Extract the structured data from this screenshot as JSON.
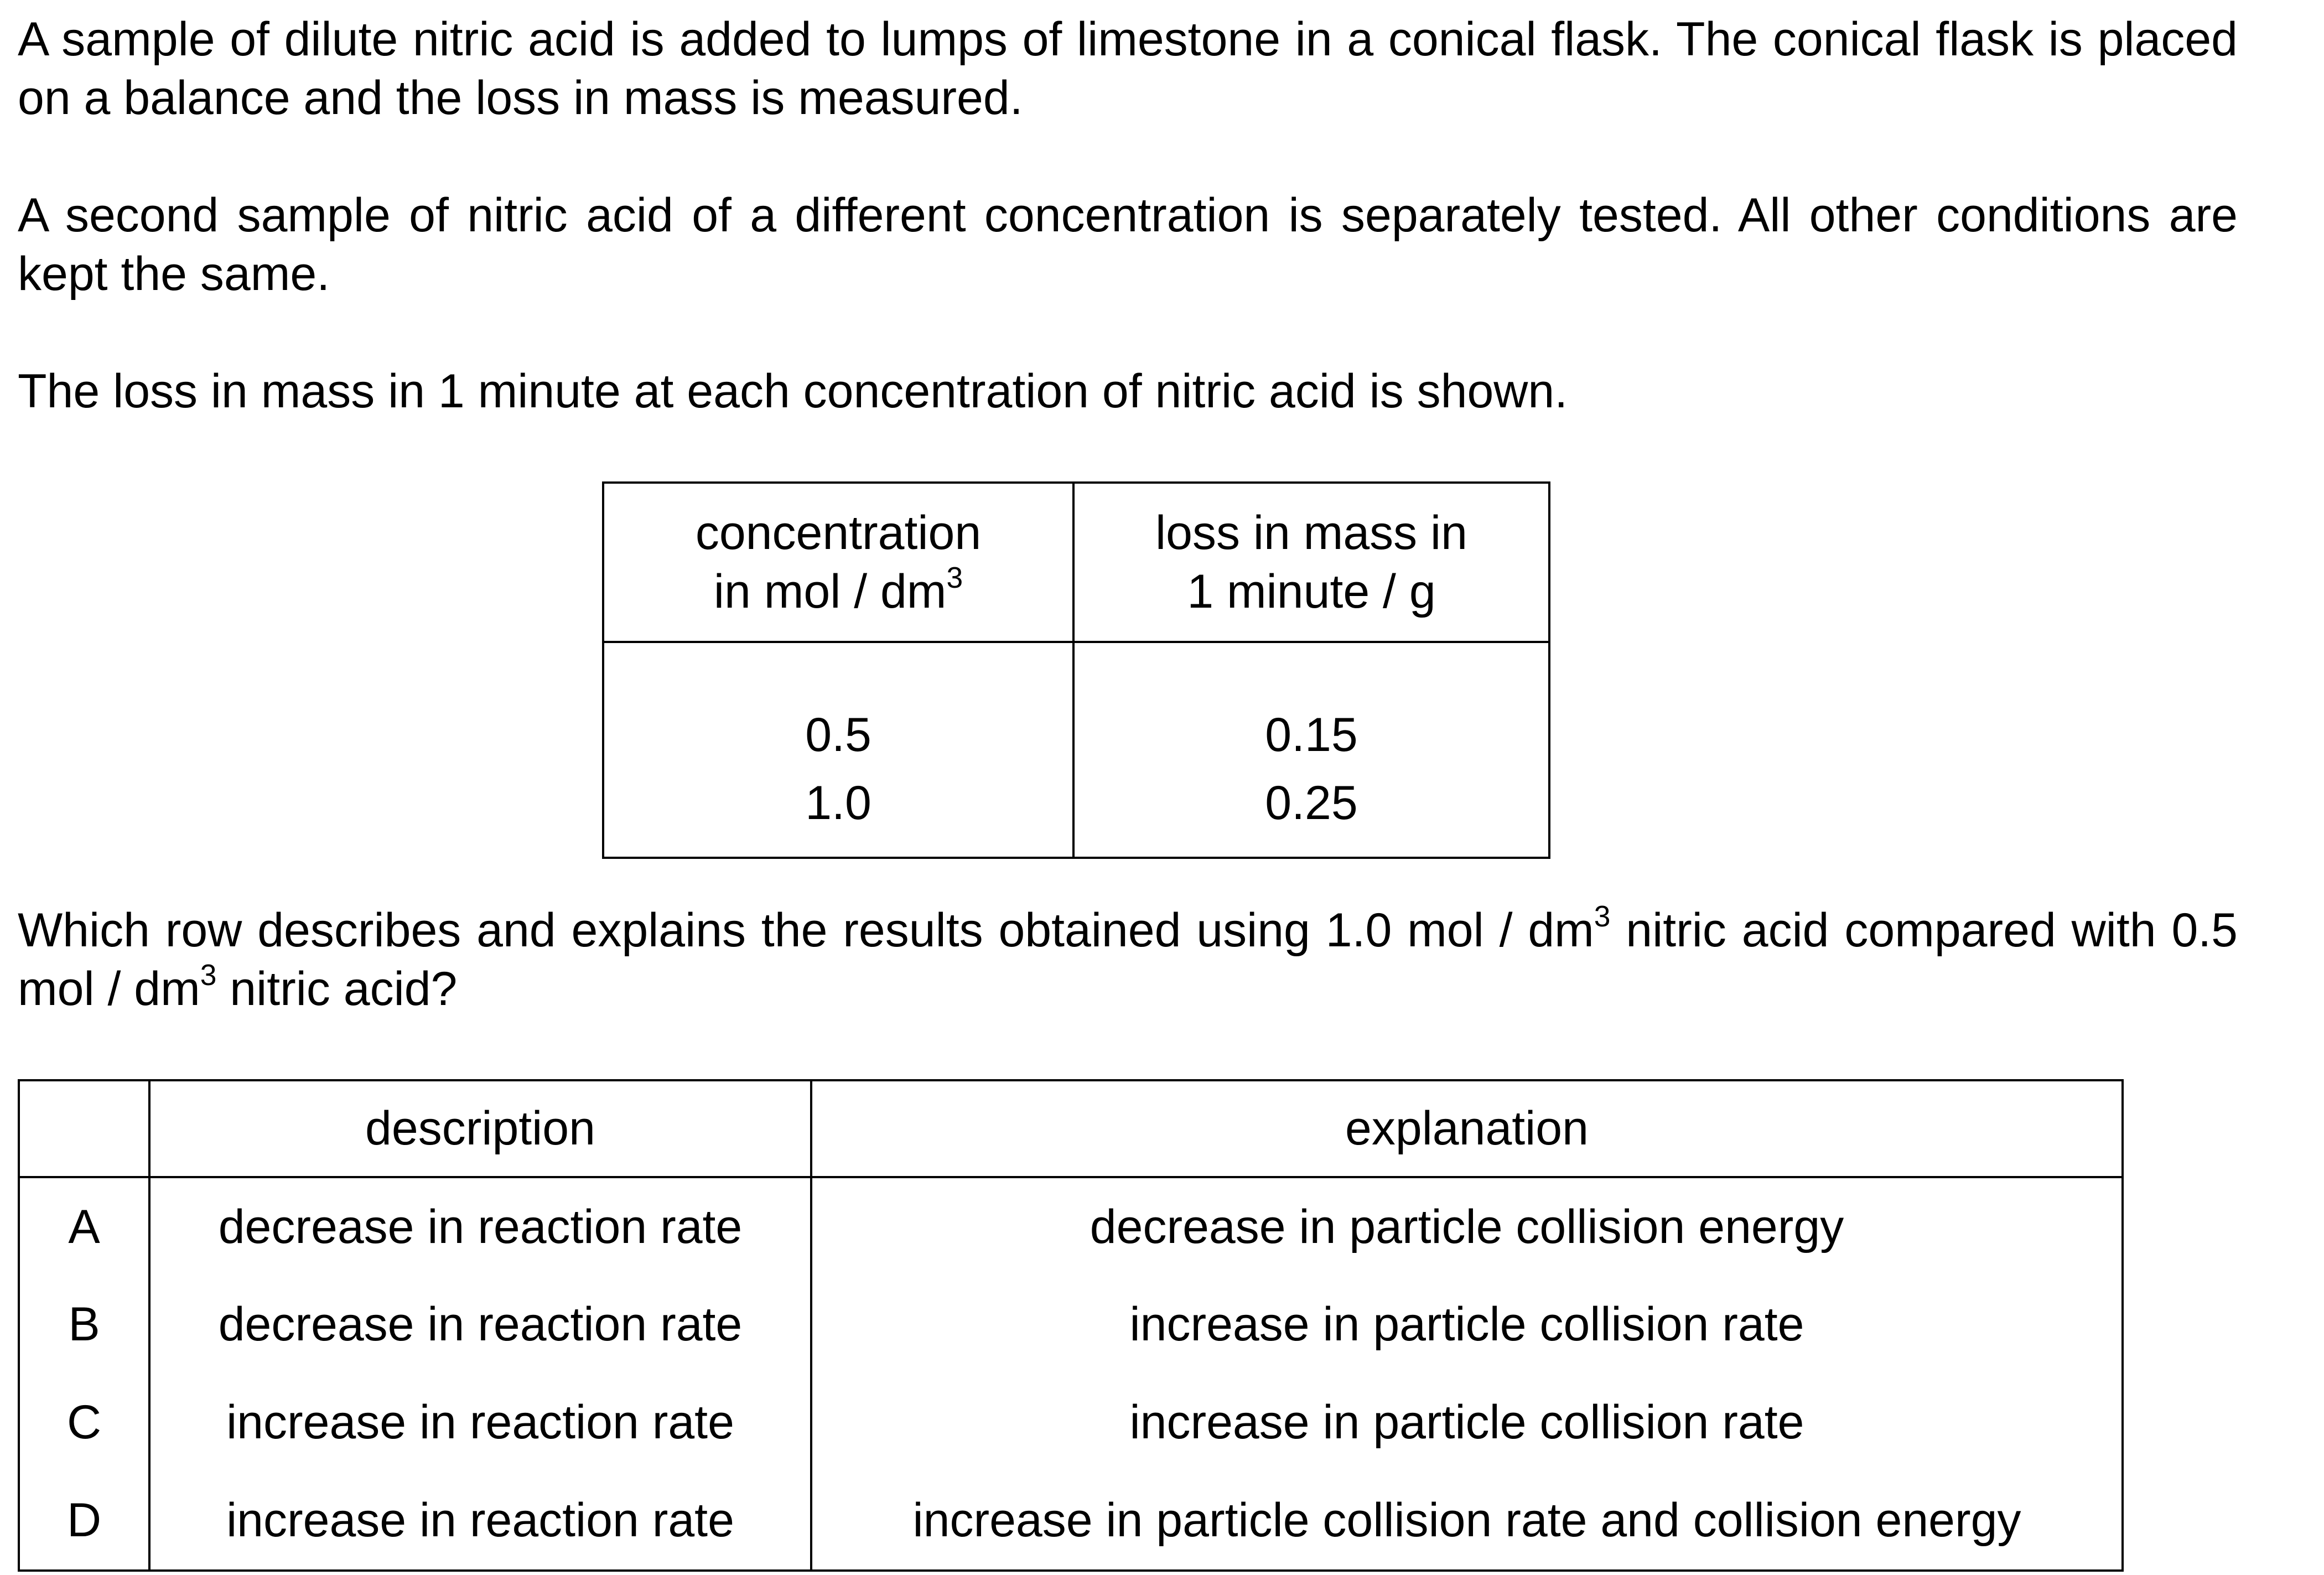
{
  "intro": {
    "p1": "A sample of dilute nitric acid is added to lumps of limestone in a conical flask. The conical flask is placed on a balance and the loss in mass is measured.",
    "p2": "A second sample of nitric acid of a different concentration is separately tested. All other conditions are kept the same.",
    "p3": "The loss in mass in 1 minute at each concentration of nitric acid is shown."
  },
  "data_table": {
    "col1_line1": "concentration",
    "col1_line2": "in mol / dm",
    "col1_sup": "3",
    "col2_line1": "loss in mass in",
    "col2_line2": "1 minute / g",
    "rows": [
      {
        "concentration": "0.5",
        "loss": "0.15"
      },
      {
        "concentration": "1.0",
        "loss": "0.25"
      }
    ]
  },
  "question": {
    "part1": "Which row describes and explains the results obtained using 1.0 mol / dm",
    "sup1": "3",
    "part2": " nitric acid compared with 0.5 mol / dm",
    "sup2": "3",
    "part3": " nitric acid?"
  },
  "answer_table": {
    "header_letter": "",
    "header_description": "description",
    "header_explanation": "explanation",
    "options": [
      {
        "letter": "A",
        "description": "decrease in reaction rate",
        "explanation": "decrease in particle collision energy"
      },
      {
        "letter": "B",
        "description": "decrease in reaction rate",
        "explanation": "increase in particle collision rate"
      },
      {
        "letter": "C",
        "description": "increase in reaction rate",
        "explanation": "increase in particle collision rate"
      },
      {
        "letter": "D",
        "description": "increase in reaction rate",
        "explanation": "increase in particle collision rate and collision energy"
      }
    ]
  }
}
